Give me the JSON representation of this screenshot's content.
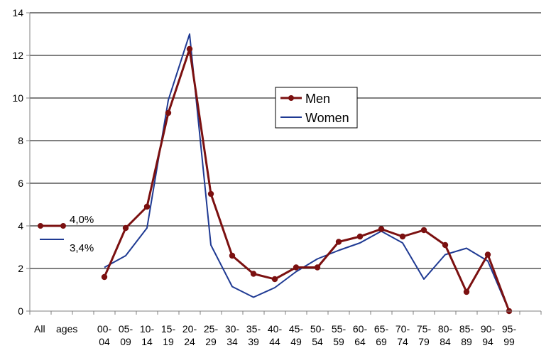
{
  "chart_data": {
    "type": "line",
    "title": "",
    "xlabel": "",
    "ylabel": "",
    "ylim": [
      0,
      14
    ],
    "yticks": [
      0,
      2,
      4,
      6,
      8,
      10,
      12,
      14
    ],
    "grid": "horizontal",
    "legend_position": "center-right",
    "all_ages": {
      "label_line1": "All",
      "label_line2": "ages",
      "men_value": 4.0,
      "women_value": 3.4,
      "men_label": "4,0%",
      "women_label": "3,4%"
    },
    "categories": [
      {
        "l1": "00-",
        "l2": "04"
      },
      {
        "l1": "05-",
        "l2": "09"
      },
      {
        "l1": "10-",
        "l2": "14"
      },
      {
        "l1": "15-",
        "l2": "19"
      },
      {
        "l1": "20-",
        "l2": "24"
      },
      {
        "l1": "25-",
        "l2": "29"
      },
      {
        "l1": "30-",
        "l2": "34"
      },
      {
        "l1": "35-",
        "l2": "39"
      },
      {
        "l1": "40-",
        "l2": "44"
      },
      {
        "l1": "45-",
        "l2": "49"
      },
      {
        "l1": "50-",
        "l2": "54"
      },
      {
        "l1": "55-",
        "l2": "59"
      },
      {
        "l1": "60-",
        "l2": "64"
      },
      {
        "l1": "65-",
        "l2": "69"
      },
      {
        "l1": "70-",
        "l2": "74"
      },
      {
        "l1": "75-",
        "l2": "79"
      },
      {
        "l1": "80-",
        "l2": "84"
      },
      {
        "l1": "85-",
        "l2": "89"
      },
      {
        "l1": "90-",
        "l2": "94"
      },
      {
        "l1": "95-",
        "l2": "99"
      }
    ],
    "series": [
      {
        "name": "Men",
        "color": "#7b1010",
        "marker": "circle",
        "values": [
          1.6,
          3.9,
          4.9,
          9.3,
          12.3,
          5.5,
          2.6,
          1.75,
          1.5,
          2.05,
          2.05,
          3.25,
          3.5,
          3.85,
          3.5,
          3.8,
          3.1,
          0.9,
          2.65,
          0
        ]
      },
      {
        "name": "Women",
        "color": "#1f3a93",
        "marker": "none",
        "values": [
          2.05,
          2.6,
          3.9,
          9.9,
          13.0,
          3.1,
          1.15,
          0.65,
          1.1,
          1.85,
          2.45,
          2.85,
          3.2,
          3.75,
          3.2,
          1.5,
          2.65,
          2.95,
          2.35,
          0
        ]
      }
    ]
  }
}
